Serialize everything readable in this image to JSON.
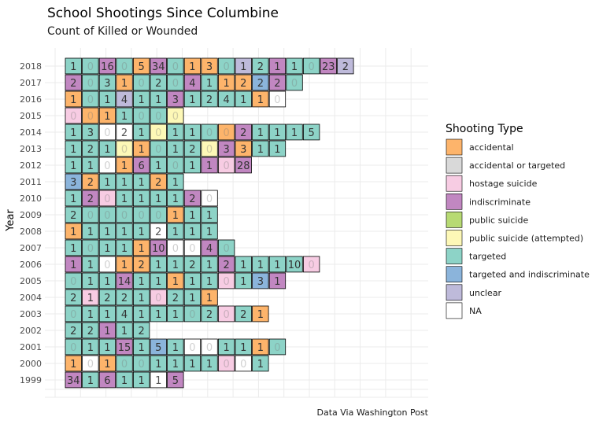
{
  "chart_data": {
    "type": "heatmap",
    "title": "School Shootings Since Columbine",
    "subtitle": "Count of Killed or Wounded",
    "ylabel": "Year",
    "xlabel": "",
    "caption": "Data Via Washington Post",
    "legend_title": "Shooting Type",
    "legend_position": "right",
    "grid": true,
    "types": [
      {
        "name": "accidental",
        "color": "#FDB46B"
      },
      {
        "name": "accidental or targeted",
        "color": "#D9D9D9"
      },
      {
        "name": "hostage suicide",
        "color": "#F7CCE3"
      },
      {
        "name": "indiscriminate",
        "color": "#C187C1"
      },
      {
        "name": "public suicide",
        "color": "#B7DA73"
      },
      {
        "name": "public suicide (attempted)",
        "color": "#FDF8B7"
      },
      {
        "name": "targeted",
        "color": "#8DD3C7"
      },
      {
        "name": "targeted and indiscriminate",
        "color": "#8BB4DB"
      },
      {
        "name": "unclear",
        "color": "#BEBADA"
      },
      {
        "name": "NA",
        "color": "#FFFFFF"
      }
    ],
    "years": [
      "2018",
      "2017",
      "2016",
      "2015",
      "2014",
      "2013",
      "2012",
      "2011",
      "2010",
      "2009",
      "2008",
      "2007",
      "2006",
      "2005",
      "2004",
      "2003",
      "2002",
      "2001",
      "2000",
      "1999"
    ],
    "rows": [
      {
        "year": "2018",
        "cells": [
          [
            1,
            "targeted"
          ],
          [
            0,
            "targeted"
          ],
          [
            16,
            "indiscriminate"
          ],
          [
            0,
            "targeted"
          ],
          [
            5,
            "accidental"
          ],
          [
            34,
            "indiscriminate"
          ],
          [
            0,
            "targeted"
          ],
          [
            1,
            "accidental"
          ],
          [
            3,
            "accidental"
          ],
          [
            0,
            "targeted"
          ],
          [
            1,
            "unclear"
          ],
          [
            2,
            "targeted"
          ],
          [
            1,
            "indiscriminate"
          ],
          [
            1,
            "targeted"
          ],
          [
            0,
            "targeted"
          ],
          [
            23,
            "indiscriminate"
          ],
          [
            2,
            "unclear"
          ]
        ]
      },
      {
        "year": "2017",
        "cells": [
          [
            2,
            "indiscriminate"
          ],
          [
            0,
            "targeted"
          ],
          [
            3,
            "targeted"
          ],
          [
            1,
            "accidental"
          ],
          [
            0,
            "targeted"
          ],
          [
            2,
            "targeted"
          ],
          [
            0,
            "targeted"
          ],
          [
            4,
            "indiscriminate"
          ],
          [
            1,
            "targeted"
          ],
          [
            1,
            "accidental"
          ],
          [
            2,
            "accidental"
          ],
          [
            2,
            "targeted and indiscriminate"
          ],
          [
            2,
            "indiscriminate"
          ],
          [
            0,
            "targeted"
          ]
        ]
      },
      {
        "year": "2016",
        "cells": [
          [
            1,
            "accidental"
          ],
          [
            0,
            "targeted"
          ],
          [
            1,
            "targeted"
          ],
          [
            4,
            "unclear"
          ],
          [
            1,
            "targeted"
          ],
          [
            1,
            "targeted"
          ],
          [
            3,
            "indiscriminate"
          ],
          [
            1,
            "targeted"
          ],
          [
            2,
            "targeted"
          ],
          [
            4,
            "targeted"
          ],
          [
            1,
            "targeted"
          ],
          [
            1,
            "accidental"
          ],
          [
            0,
            "NA"
          ]
        ]
      },
      {
        "year": "2015",
        "cells": [
          [
            0,
            "hostage suicide"
          ],
          [
            0,
            "accidental"
          ],
          [
            1,
            "accidental"
          ],
          [
            1,
            "targeted"
          ],
          [
            0,
            "targeted"
          ],
          [
            0,
            "targeted"
          ],
          [
            0,
            "public suicide (attempted)"
          ]
        ]
      },
      {
        "year": "2014",
        "cells": [
          [
            1,
            "targeted"
          ],
          [
            3,
            "targeted"
          ],
          [
            0,
            "NA"
          ],
          [
            2,
            "NA"
          ],
          [
            1,
            "targeted"
          ],
          [
            0,
            "public suicide (attempted)"
          ],
          [
            1,
            "targeted"
          ],
          [
            1,
            "targeted"
          ],
          [
            0,
            "targeted"
          ],
          [
            0,
            "accidental"
          ],
          [
            2,
            "indiscriminate"
          ],
          [
            1,
            "targeted"
          ],
          [
            1,
            "targeted"
          ],
          [
            1,
            "targeted"
          ],
          [
            5,
            "targeted"
          ]
        ]
      },
      {
        "year": "2013",
        "cells": [
          [
            1,
            "targeted"
          ],
          [
            2,
            "targeted"
          ],
          [
            1,
            "targeted"
          ],
          [
            0,
            "public suicide (attempted)"
          ],
          [
            1,
            "accidental"
          ],
          [
            0,
            "targeted"
          ],
          [
            1,
            "targeted"
          ],
          [
            2,
            "targeted"
          ],
          [
            0,
            "public suicide (attempted)"
          ],
          [
            3,
            "indiscriminate"
          ],
          [
            3,
            "accidental"
          ],
          [
            1,
            "targeted"
          ],
          [
            1,
            "targeted"
          ]
        ]
      },
      {
        "year": "2012",
        "cells": [
          [
            1,
            "targeted"
          ],
          [
            1,
            "targeted"
          ],
          [
            0,
            "NA"
          ],
          [
            1,
            "accidental"
          ],
          [
            6,
            "indiscriminate"
          ],
          [
            1,
            "targeted"
          ],
          [
            0,
            "targeted"
          ],
          [
            1,
            "targeted"
          ],
          [
            1,
            "indiscriminate"
          ],
          [
            0,
            "hostage suicide"
          ],
          [
            28,
            "indiscriminate"
          ]
        ]
      },
      {
        "year": "2011",
        "cells": [
          [
            3,
            "targeted and indiscriminate"
          ],
          [
            2,
            "accidental"
          ],
          [
            1,
            "targeted"
          ],
          [
            1,
            "targeted"
          ],
          [
            1,
            "targeted"
          ],
          [
            2,
            "accidental"
          ],
          [
            1,
            "targeted"
          ]
        ]
      },
      {
        "year": "2010",
        "cells": [
          [
            1,
            "targeted"
          ],
          [
            2,
            "indiscriminate"
          ],
          [
            0,
            "hostage suicide"
          ],
          [
            1,
            "targeted"
          ],
          [
            1,
            "targeted"
          ],
          [
            1,
            "targeted"
          ],
          [
            1,
            "targeted"
          ],
          [
            2,
            "indiscriminate"
          ],
          [
            0,
            "NA"
          ]
        ]
      },
      {
        "year": "2009",
        "cells": [
          [
            2,
            "targeted"
          ],
          [
            0,
            "targeted"
          ],
          [
            0,
            "targeted"
          ],
          [
            0,
            "targeted"
          ],
          [
            0,
            "targeted"
          ],
          [
            0,
            "targeted"
          ],
          [
            1,
            "accidental"
          ],
          [
            1,
            "targeted"
          ],
          [
            1,
            "targeted"
          ]
        ]
      },
      {
        "year": "2008",
        "cells": [
          [
            1,
            "accidental"
          ],
          [
            1,
            "targeted"
          ],
          [
            1,
            "targeted"
          ],
          [
            1,
            "targeted"
          ],
          [
            1,
            "targeted"
          ],
          [
            2,
            "NA"
          ],
          [
            1,
            "targeted"
          ],
          [
            1,
            "targeted"
          ],
          [
            1,
            "targeted"
          ]
        ]
      },
      {
        "year": "2007",
        "cells": [
          [
            1,
            "targeted"
          ],
          [
            0,
            "targeted"
          ],
          [
            1,
            "targeted"
          ],
          [
            1,
            "targeted"
          ],
          [
            1,
            "accidental"
          ],
          [
            10,
            "indiscriminate"
          ],
          [
            0,
            "NA"
          ],
          [
            0,
            "NA"
          ],
          [
            4,
            "indiscriminate"
          ],
          [
            0,
            "targeted"
          ]
        ]
      },
      {
        "year": "2006",
        "cells": [
          [
            1,
            "indiscriminate"
          ],
          [
            1,
            "targeted"
          ],
          [
            0,
            "NA"
          ],
          [
            1,
            "accidental"
          ],
          [
            2,
            "accidental"
          ],
          [
            1,
            "targeted"
          ],
          [
            1,
            "targeted"
          ],
          [
            2,
            "targeted"
          ],
          [
            1,
            "targeted"
          ],
          [
            2,
            "indiscriminate"
          ],
          [
            1,
            "targeted"
          ],
          [
            1,
            "targeted"
          ],
          [
            1,
            "targeted"
          ],
          [
            10,
            "targeted"
          ],
          [
            0,
            "hostage suicide"
          ]
        ]
      },
      {
        "year": "2005",
        "cells": [
          [
            0,
            "targeted"
          ],
          [
            1,
            "targeted"
          ],
          [
            1,
            "targeted"
          ],
          [
            14,
            "indiscriminate"
          ],
          [
            1,
            "targeted"
          ],
          [
            1,
            "targeted"
          ],
          [
            1,
            "accidental"
          ],
          [
            1,
            "targeted"
          ],
          [
            1,
            "targeted"
          ],
          [
            0,
            "hostage suicide"
          ],
          [
            1,
            "targeted"
          ],
          [
            3,
            "targeted and indiscriminate"
          ],
          [
            1,
            "indiscriminate"
          ]
        ]
      },
      {
        "year": "2004",
        "cells": [
          [
            2,
            "targeted"
          ],
          [
            1,
            "hostage suicide"
          ],
          [
            2,
            "targeted"
          ],
          [
            2,
            "targeted"
          ],
          [
            1,
            "targeted"
          ],
          [
            0,
            "hostage suicide"
          ],
          [
            2,
            "targeted"
          ],
          [
            1,
            "targeted"
          ],
          [
            1,
            "accidental"
          ]
        ]
      },
      {
        "year": "2003",
        "cells": [
          [
            0,
            "targeted"
          ],
          [
            1,
            "targeted"
          ],
          [
            1,
            "targeted"
          ],
          [
            4,
            "targeted"
          ],
          [
            1,
            "targeted"
          ],
          [
            1,
            "targeted"
          ],
          [
            1,
            "targeted"
          ],
          [
            0,
            "targeted"
          ],
          [
            2,
            "targeted"
          ],
          [
            0,
            "hostage suicide"
          ],
          [
            2,
            "targeted"
          ],
          [
            1,
            "accidental"
          ]
        ]
      },
      {
        "year": "2002",
        "cells": [
          [
            2,
            "targeted"
          ],
          [
            2,
            "targeted"
          ],
          [
            1,
            "indiscriminate"
          ],
          [
            1,
            "targeted"
          ],
          [
            2,
            "targeted"
          ]
        ]
      },
      {
        "year": "2001",
        "cells": [
          [
            0,
            "targeted"
          ],
          [
            1,
            "targeted"
          ],
          [
            1,
            "targeted"
          ],
          [
            15,
            "indiscriminate"
          ],
          [
            1,
            "targeted"
          ],
          [
            5,
            "targeted and indiscriminate"
          ],
          [
            1,
            "targeted"
          ],
          [
            0,
            "NA"
          ],
          [
            0,
            "NA"
          ],
          [
            1,
            "targeted"
          ],
          [
            1,
            "targeted"
          ],
          [
            1,
            "accidental"
          ],
          [
            0,
            "targeted"
          ]
        ]
      },
      {
        "year": "2000",
        "cells": [
          [
            1,
            "accidental"
          ],
          [
            0,
            "NA"
          ],
          [
            1,
            "accidental"
          ],
          [
            0,
            "targeted"
          ],
          [
            0,
            "targeted"
          ],
          [
            1,
            "targeted"
          ],
          [
            1,
            "targeted"
          ],
          [
            1,
            "targeted"
          ],
          [
            1,
            "targeted"
          ],
          [
            0,
            "hostage suicide"
          ],
          [
            0,
            "NA"
          ],
          [
            1,
            "targeted"
          ]
        ]
      },
      {
        "year": "1999",
        "cells": [
          [
            34,
            "indiscriminate"
          ],
          [
            1,
            "targeted"
          ],
          [
            6,
            "indiscriminate"
          ],
          [
            1,
            "targeted"
          ],
          [
            1,
            "targeted"
          ],
          [
            1,
            "NA"
          ],
          [
            5,
            "indiscriminate"
          ]
        ]
      }
    ]
  }
}
